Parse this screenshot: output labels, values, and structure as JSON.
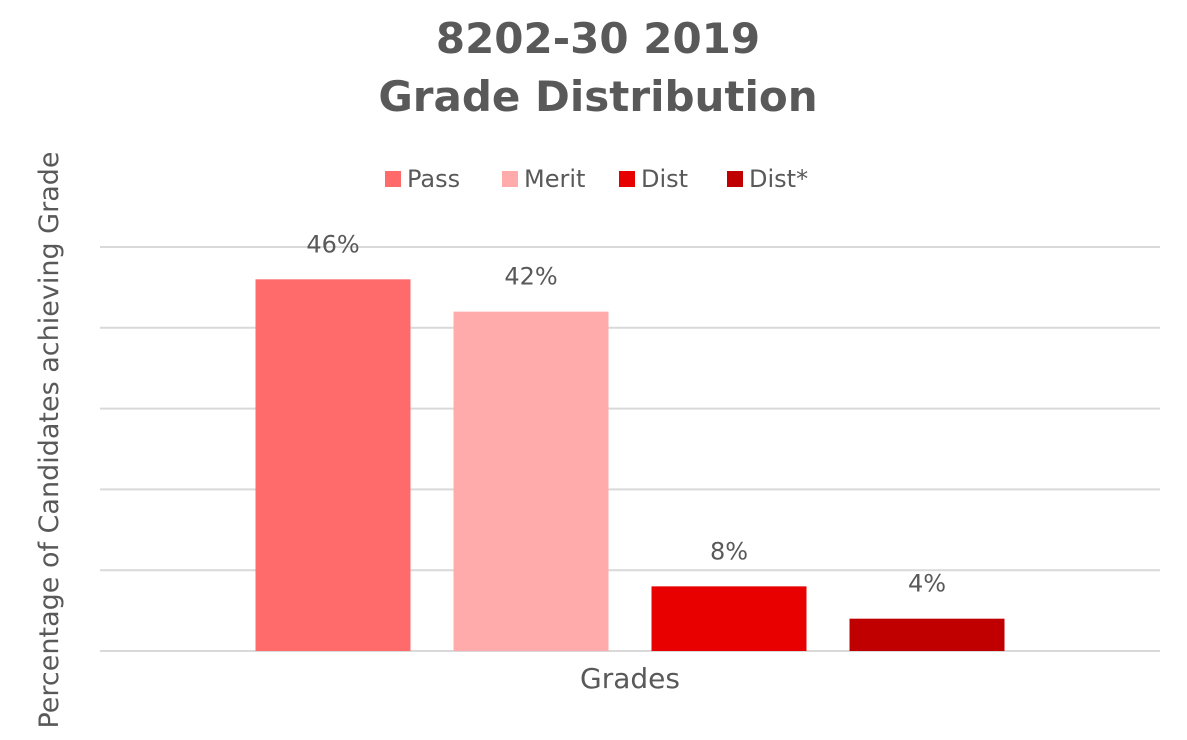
{
  "chart_data": {
    "type": "bar",
    "title": "8202-30 2019 Grade Distribution",
    "y_axis_label": "Percentage of Candidates achieving Grade",
    "categories": [
      "Grades"
    ],
    "series": [
      {
        "name": "Pass",
        "color": "#ff6b6b",
        "values": [
          46
        ],
        "value_labels": [
          "46%"
        ]
      },
      {
        "name": "Merit",
        "color": "#ffabab",
        "values": [
          42
        ],
        "value_labels": [
          "42%"
        ]
      },
      {
        "name": "Dist",
        "color": "#e80000",
        "values": [
          8
        ],
        "value_labels": [
          "8%"
        ]
      },
      {
        "name": "Dist*",
        "color": "#c00000",
        "values": [
          4
        ],
        "value_labels": [
          "4%"
        ]
      }
    ],
    "ylim": [
      0,
      50
    ],
    "yticks": [
      0,
      10,
      20,
      30,
      40,
      50
    ],
    "grid": true,
    "legend": "top"
  }
}
